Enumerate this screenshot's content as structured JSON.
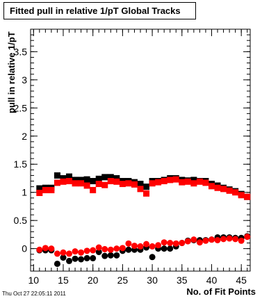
{
  "chart_data": {
    "type": "scatter",
    "title": "Fitted pull in relative 1/pT  Global Tracks",
    "xlabel": "No. of Fit Points",
    "ylabel": "pull in relative 1/pT",
    "timestamp": "Thu Oct 27 22:05:11 2011",
    "xlim": [
      9.5,
      46.5
    ],
    "ylim": [
      -0.4,
      3.9
    ],
    "x_ticks": [
      10,
      15,
      20,
      25,
      30,
      35,
      40,
      45
    ],
    "y_ticks": [
      0,
      0.5,
      1,
      1.5,
      2,
      2.5,
      3,
      3.5
    ],
    "x_ticks_minor_step": 1,
    "y_ticks_minor_step": 0.1,
    "grid": false,
    "series": [
      {
        "marker": "square",
        "color": "#000000",
        "x": [
          11,
          12,
          13,
          14,
          15,
          16,
          17,
          18,
          19,
          20,
          21,
          22,
          23,
          24,
          25,
          26,
          27,
          28,
          29,
          30,
          31,
          32,
          33,
          34,
          35,
          36,
          37,
          38,
          39,
          40,
          41,
          42,
          43,
          44,
          45,
          46
        ],
        "values": [
          1.07,
          1.08,
          1.08,
          1.3,
          1.25,
          1.28,
          1.22,
          1.22,
          1.23,
          1.2,
          1.24,
          1.27,
          1.27,
          1.25,
          1.2,
          1.2,
          1.18,
          1.15,
          1.1,
          1.2,
          1.2,
          1.22,
          1.25,
          1.25,
          1.22,
          1.21,
          1.22,
          1.2,
          1.2,
          1.15,
          1.12,
          1.08,
          1.05,
          1.02,
          0.97,
          0.92
        ]
      },
      {
        "marker": "square",
        "color": "#ff0000",
        "x": [
          11,
          12,
          13,
          14,
          15,
          16,
          17,
          18,
          19,
          20,
          21,
          22,
          23,
          24,
          25,
          26,
          27,
          28,
          29,
          30,
          31,
          32,
          33,
          34,
          35,
          36,
          37,
          38,
          39,
          40,
          41,
          42,
          43,
          44,
          45,
          46
        ],
        "values": [
          0.99,
          1.04,
          1.04,
          1.17,
          1.19,
          1.2,
          1.16,
          1.16,
          1.12,
          1.04,
          1.15,
          1.13,
          1.2,
          1.19,
          1.15,
          1.16,
          1.14,
          1.06,
          0.98,
          1.16,
          1.18,
          1.2,
          1.22,
          1.23,
          1.18,
          1.19,
          1.16,
          1.19,
          1.17,
          1.11,
          1.08,
          1.06,
          1.03,
          1.0,
          0.95,
          0.92
        ]
      },
      {
        "marker": "circle",
        "color": "#000000",
        "x": [
          11,
          12,
          13,
          14,
          15,
          16,
          17,
          18,
          19,
          20,
          21,
          22,
          23,
          24,
          25,
          26,
          27,
          28,
          29,
          30,
          31,
          32,
          33,
          34,
          35,
          36,
          37,
          38,
          39,
          40,
          41,
          42,
          43,
          44,
          45,
          46
        ],
        "values": [
          -0.03,
          -0.03,
          -0.03,
          -0.27,
          -0.16,
          -0.22,
          -0.18,
          -0.19,
          -0.17,
          -0.17,
          -0.06,
          -0.13,
          -0.12,
          -0.12,
          -0.04,
          -0.02,
          -0.02,
          -0.02,
          0.02,
          -0.15,
          0.0,
          0.0,
          0.0,
          0.04,
          0.1,
          0.14,
          0.15,
          0.15,
          0.15,
          0.16,
          0.2,
          0.2,
          0.2,
          0.19,
          0.19,
          0.22
        ]
      },
      {
        "marker": "circle",
        "color": "#ff0000",
        "x": [
          11,
          12,
          13,
          14,
          15,
          16,
          17,
          18,
          19,
          20,
          21,
          22,
          23,
          24,
          25,
          26,
          27,
          28,
          29,
          30,
          31,
          32,
          33,
          34,
          35,
          36,
          37,
          38,
          39,
          40,
          41,
          42,
          43,
          44,
          45,
          46
        ],
        "values": [
          -0.02,
          0.01,
          0.0,
          -0.09,
          -0.07,
          -0.09,
          -0.05,
          -0.07,
          -0.04,
          -0.03,
          0.02,
          -0.01,
          -0.02,
          0.0,
          0.01,
          0.09,
          0.05,
          0.04,
          0.08,
          0.04,
          0.06,
          0.11,
          0.1,
          0.09,
          0.1,
          0.13,
          0.16,
          0.11,
          0.14,
          0.16,
          0.15,
          0.17,
          0.18,
          0.17,
          0.14,
          0.21
        ]
      }
    ]
  }
}
